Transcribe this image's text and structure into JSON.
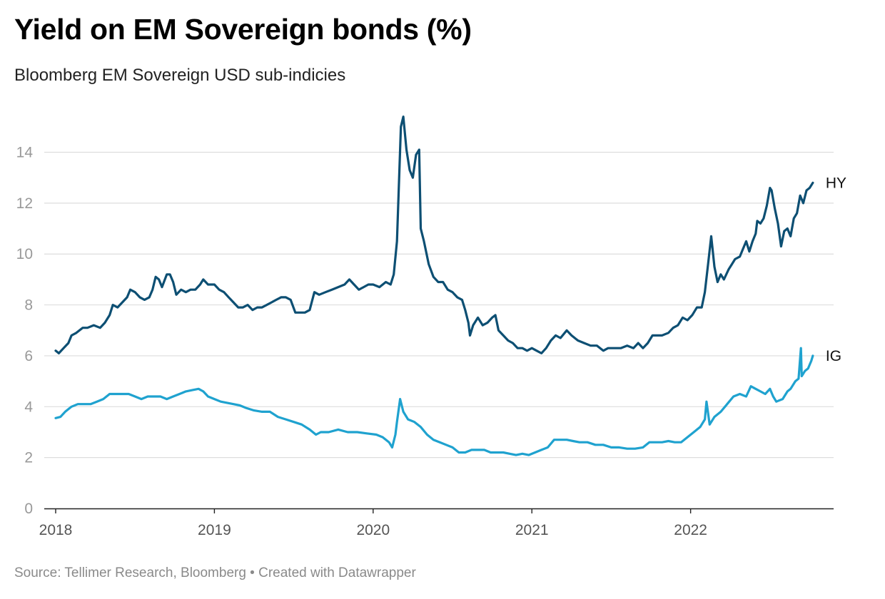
{
  "title": "Yield on EM Sovereign bonds (%)",
  "subtitle": "Bloomberg EM Sovereign USD sub-indicies",
  "source": "Source: Tellimer Research, Bloomberg • Created with Datawrapper",
  "chart_data": {
    "type": "line",
    "title": "Yield on EM Sovereign bonds (%)",
    "subtitle": "Bloomberg EM Sovereign USD sub-indicies",
    "xlabel": "",
    "ylabel": "",
    "xlim": [
      2018.0,
      2022.82
    ],
    "ylim": [
      0,
      15.5
    ],
    "y_ticks": [
      0,
      2,
      4,
      6,
      8,
      10,
      12,
      14
    ],
    "x_ticks": [
      {
        "value": 2018,
        "label": "2018"
      },
      {
        "value": 2019,
        "label": "2019"
      },
      {
        "value": 2020,
        "label": "2020"
      },
      {
        "value": 2021,
        "label": "2021"
      },
      {
        "value": 2022,
        "label": "2022"
      }
    ],
    "grid": true,
    "legend": "direct labels at line ends (right)",
    "series": [
      {
        "name": "HY",
        "color": "#0d4f73",
        "points": [
          [
            2018.0,
            6.2
          ],
          [
            2018.02,
            6.1
          ],
          [
            2018.05,
            6.3
          ],
          [
            2018.08,
            6.5
          ],
          [
            2018.1,
            6.8
          ],
          [
            2018.13,
            6.9
          ],
          [
            2018.17,
            7.1
          ],
          [
            2018.2,
            7.1
          ],
          [
            2018.24,
            7.2
          ],
          [
            2018.28,
            7.1
          ],
          [
            2018.31,
            7.3
          ],
          [
            2018.34,
            7.6
          ],
          [
            2018.36,
            8.0
          ],
          [
            2018.39,
            7.9
          ],
          [
            2018.42,
            8.1
          ],
          [
            2018.45,
            8.3
          ],
          [
            2018.47,
            8.6
          ],
          [
            2018.5,
            8.5
          ],
          [
            2018.53,
            8.3
          ],
          [
            2018.56,
            8.2
          ],
          [
            2018.59,
            8.3
          ],
          [
            2018.61,
            8.6
          ],
          [
            2018.63,
            9.1
          ],
          [
            2018.65,
            9.0
          ],
          [
            2018.67,
            8.7
          ],
          [
            2018.7,
            9.2
          ],
          [
            2018.72,
            9.2
          ],
          [
            2018.74,
            8.9
          ],
          [
            2018.76,
            8.4
          ],
          [
            2018.79,
            8.6
          ],
          [
            2018.82,
            8.5
          ],
          [
            2018.85,
            8.6
          ],
          [
            2018.88,
            8.6
          ],
          [
            2018.91,
            8.8
          ],
          [
            2018.93,
            9.0
          ],
          [
            2018.96,
            8.8
          ],
          [
            2019.0,
            8.8
          ],
          [
            2019.03,
            8.6
          ],
          [
            2019.06,
            8.5
          ],
          [
            2019.09,
            8.3
          ],
          [
            2019.12,
            8.1
          ],
          [
            2019.15,
            7.9
          ],
          [
            2019.18,
            7.9
          ],
          [
            2019.21,
            8.0
          ],
          [
            2019.24,
            7.8
          ],
          [
            2019.27,
            7.9
          ],
          [
            2019.3,
            7.9
          ],
          [
            2019.33,
            8.0
          ],
          [
            2019.36,
            8.1
          ],
          [
            2019.39,
            8.2
          ],
          [
            2019.42,
            8.3
          ],
          [
            2019.45,
            8.3
          ],
          [
            2019.48,
            8.2
          ],
          [
            2019.51,
            7.7
          ],
          [
            2019.54,
            7.7
          ],
          [
            2019.57,
            7.7
          ],
          [
            2019.6,
            7.8
          ],
          [
            2019.63,
            8.5
          ],
          [
            2019.66,
            8.4
          ],
          [
            2019.7,
            8.5
          ],
          [
            2019.74,
            8.6
          ],
          [
            2019.78,
            8.7
          ],
          [
            2019.82,
            8.8
          ],
          [
            2019.85,
            9.0
          ],
          [
            2019.88,
            8.8
          ],
          [
            2019.91,
            8.6
          ],
          [
            2019.94,
            8.7
          ],
          [
            2019.97,
            8.8
          ],
          [
            2020.0,
            8.8
          ],
          [
            2020.04,
            8.7
          ],
          [
            2020.08,
            8.9
          ],
          [
            2020.11,
            8.8
          ],
          [
            2020.13,
            9.2
          ],
          [
            2020.15,
            10.5
          ],
          [
            2020.16,
            12.3
          ],
          [
            2020.175,
            15.0
          ],
          [
            2020.19,
            15.4
          ],
          [
            2020.21,
            14.1
          ],
          [
            2020.23,
            13.3
          ],
          [
            2020.25,
            13.0
          ],
          [
            2020.27,
            13.9
          ],
          [
            2020.29,
            14.1
          ],
          [
            2020.3,
            11.0
          ],
          [
            2020.32,
            10.5
          ],
          [
            2020.35,
            9.6
          ],
          [
            2020.38,
            9.1
          ],
          [
            2020.41,
            8.9
          ],
          [
            2020.44,
            8.9
          ],
          [
            2020.47,
            8.6
          ],
          [
            2020.5,
            8.5
          ],
          [
            2020.53,
            8.3
          ],
          [
            2020.56,
            8.2
          ],
          [
            2020.58,
            7.8
          ],
          [
            2020.6,
            7.3
          ],
          [
            2020.61,
            6.8
          ],
          [
            2020.63,
            7.2
          ],
          [
            2020.66,
            7.5
          ],
          [
            2020.69,
            7.2
          ],
          [
            2020.72,
            7.3
          ],
          [
            2020.75,
            7.5
          ],
          [
            2020.77,
            7.6
          ],
          [
            2020.79,
            7.0
          ],
          [
            2020.82,
            6.8
          ],
          [
            2020.85,
            6.6
          ],
          [
            2020.88,
            6.5
          ],
          [
            2020.91,
            6.3
          ],
          [
            2020.94,
            6.3
          ],
          [
            2020.97,
            6.2
          ],
          [
            2021.0,
            6.3
          ],
          [
            2021.03,
            6.2
          ],
          [
            2021.06,
            6.1
          ],
          [
            2021.09,
            6.3
          ],
          [
            2021.12,
            6.6
          ],
          [
            2021.15,
            6.8
          ],
          [
            2021.18,
            6.7
          ],
          [
            2021.22,
            7.0
          ],
          [
            2021.25,
            6.8
          ],
          [
            2021.29,
            6.6
          ],
          [
            2021.33,
            6.5
          ],
          [
            2021.37,
            6.4
          ],
          [
            2021.41,
            6.4
          ],
          [
            2021.45,
            6.2
          ],
          [
            2021.48,
            6.3
          ],
          [
            2021.52,
            6.3
          ],
          [
            2021.56,
            6.3
          ],
          [
            2021.6,
            6.4
          ],
          [
            2021.64,
            6.3
          ],
          [
            2021.67,
            6.5
          ],
          [
            2021.7,
            6.3
          ],
          [
            2021.73,
            6.5
          ],
          [
            2021.76,
            6.8
          ],
          [
            2021.79,
            6.8
          ],
          [
            2021.82,
            6.8
          ],
          [
            2021.86,
            6.9
          ],
          [
            2021.89,
            7.1
          ],
          [
            2021.92,
            7.2
          ],
          [
            2021.95,
            7.5
          ],
          [
            2021.98,
            7.4
          ],
          [
            2022.01,
            7.6
          ],
          [
            2022.04,
            7.9
          ],
          [
            2022.07,
            7.9
          ],
          [
            2022.09,
            8.5
          ],
          [
            2022.11,
            9.6
          ],
          [
            2022.13,
            10.7
          ],
          [
            2022.15,
            9.5
          ],
          [
            2022.17,
            8.9
          ],
          [
            2022.19,
            9.2
          ],
          [
            2022.21,
            9.0
          ],
          [
            2022.24,
            9.4
          ],
          [
            2022.26,
            9.6
          ],
          [
            2022.28,
            9.8
          ],
          [
            2022.31,
            9.9
          ],
          [
            2022.33,
            10.2
          ],
          [
            2022.35,
            10.5
          ],
          [
            2022.37,
            10.1
          ],
          [
            2022.39,
            10.5
          ],
          [
            2022.41,
            10.8
          ],
          [
            2022.42,
            11.3
          ],
          [
            2022.44,
            11.2
          ],
          [
            2022.46,
            11.4
          ],
          [
            2022.48,
            11.9
          ],
          [
            2022.5,
            12.6
          ],
          [
            2022.51,
            12.5
          ],
          [
            2022.53,
            11.8
          ],
          [
            2022.55,
            11.2
          ],
          [
            2022.57,
            10.3
          ],
          [
            2022.59,
            10.9
          ],
          [
            2022.61,
            11.0
          ],
          [
            2022.63,
            10.7
          ],
          [
            2022.65,
            11.4
          ],
          [
            2022.67,
            11.6
          ],
          [
            2022.69,
            12.3
          ],
          [
            2022.71,
            12.0
          ],
          [
            2022.73,
            12.5
          ],
          [
            2022.75,
            12.6
          ],
          [
            2022.77,
            12.8
          ]
        ]
      },
      {
        "name": "IG",
        "color": "#1fa2cf",
        "points": [
          [
            2018.0,
            3.55
          ],
          [
            2018.03,
            3.6
          ],
          [
            2018.06,
            3.8
          ],
          [
            2018.1,
            4.0
          ],
          [
            2018.14,
            4.1
          ],
          [
            2018.18,
            4.1
          ],
          [
            2018.22,
            4.1
          ],
          [
            2018.26,
            4.2
          ],
          [
            2018.3,
            4.3
          ],
          [
            2018.34,
            4.5
          ],
          [
            2018.38,
            4.5
          ],
          [
            2018.42,
            4.5
          ],
          [
            2018.46,
            4.5
          ],
          [
            2018.5,
            4.4
          ],
          [
            2018.54,
            4.3
          ],
          [
            2018.58,
            4.4
          ],
          [
            2018.62,
            4.4
          ],
          [
            2018.66,
            4.4
          ],
          [
            2018.7,
            4.3
          ],
          [
            2018.74,
            4.4
          ],
          [
            2018.78,
            4.5
          ],
          [
            2018.82,
            4.6
          ],
          [
            2018.86,
            4.65
          ],
          [
            2018.9,
            4.7
          ],
          [
            2018.93,
            4.6
          ],
          [
            2018.96,
            4.4
          ],
          [
            2019.0,
            4.3
          ],
          [
            2019.04,
            4.2
          ],
          [
            2019.08,
            4.15
          ],
          [
            2019.12,
            4.1
          ],
          [
            2019.16,
            4.05
          ],
          [
            2019.2,
            3.95
          ],
          [
            2019.25,
            3.85
          ],
          [
            2019.3,
            3.8
          ],
          [
            2019.35,
            3.8
          ],
          [
            2019.4,
            3.6
          ],
          [
            2019.45,
            3.5
          ],
          [
            2019.5,
            3.4
          ],
          [
            2019.55,
            3.3
          ],
          [
            2019.6,
            3.1
          ],
          [
            2019.64,
            2.9
          ],
          [
            2019.67,
            3.0
          ],
          [
            2019.72,
            3.0
          ],
          [
            2019.78,
            3.1
          ],
          [
            2019.84,
            3.0
          ],
          [
            2019.9,
            3.0
          ],
          [
            2019.96,
            2.95
          ],
          [
            2020.02,
            2.9
          ],
          [
            2020.06,
            2.8
          ],
          [
            2020.1,
            2.6
          ],
          [
            2020.12,
            2.4
          ],
          [
            2020.14,
            2.9
          ],
          [
            2020.15,
            3.4
          ],
          [
            2020.17,
            4.3
          ],
          [
            2020.19,
            3.8
          ],
          [
            2020.22,
            3.5
          ],
          [
            2020.26,
            3.4
          ],
          [
            2020.3,
            3.2
          ],
          [
            2020.34,
            2.9
          ],
          [
            2020.38,
            2.7
          ],
          [
            2020.42,
            2.6
          ],
          [
            2020.46,
            2.5
          ],
          [
            2020.5,
            2.4
          ],
          [
            2020.54,
            2.2
          ],
          [
            2020.58,
            2.2
          ],
          [
            2020.62,
            2.3
          ],
          [
            2020.66,
            2.3
          ],
          [
            2020.7,
            2.3
          ],
          [
            2020.74,
            2.2
          ],
          [
            2020.78,
            2.2
          ],
          [
            2020.82,
            2.2
          ],
          [
            2020.86,
            2.15
          ],
          [
            2020.9,
            2.1
          ],
          [
            2020.94,
            2.15
          ],
          [
            2020.98,
            2.1
          ],
          [
            2021.02,
            2.2
          ],
          [
            2021.06,
            2.3
          ],
          [
            2021.1,
            2.4
          ],
          [
            2021.14,
            2.7
          ],
          [
            2021.18,
            2.7
          ],
          [
            2021.22,
            2.7
          ],
          [
            2021.26,
            2.65
          ],
          [
            2021.3,
            2.6
          ],
          [
            2021.35,
            2.6
          ],
          [
            2021.4,
            2.5
          ],
          [
            2021.45,
            2.5
          ],
          [
            2021.5,
            2.4
          ],
          [
            2021.55,
            2.4
          ],
          [
            2021.6,
            2.35
          ],
          [
            2021.65,
            2.35
          ],
          [
            2021.7,
            2.4
          ],
          [
            2021.74,
            2.6
          ],
          [
            2021.78,
            2.6
          ],
          [
            2021.82,
            2.6
          ],
          [
            2021.86,
            2.65
          ],
          [
            2021.9,
            2.6
          ],
          [
            2021.94,
            2.6
          ],
          [
            2021.98,
            2.8
          ],
          [
            2022.02,
            3.0
          ],
          [
            2022.06,
            3.2
          ],
          [
            2022.09,
            3.5
          ],
          [
            2022.1,
            4.2
          ],
          [
            2022.12,
            3.3
          ],
          [
            2022.15,
            3.6
          ],
          [
            2022.19,
            3.8
          ],
          [
            2022.23,
            4.1
          ],
          [
            2022.27,
            4.4
          ],
          [
            2022.31,
            4.5
          ],
          [
            2022.35,
            4.4
          ],
          [
            2022.38,
            4.8
          ],
          [
            2022.41,
            4.7
          ],
          [
            2022.44,
            4.6
          ],
          [
            2022.47,
            4.5
          ],
          [
            2022.5,
            4.7
          ],
          [
            2022.52,
            4.4
          ],
          [
            2022.54,
            4.2
          ],
          [
            2022.58,
            4.3
          ],
          [
            2022.61,
            4.6
          ],
          [
            2022.63,
            4.7
          ],
          [
            2022.66,
            5.0
          ],
          [
            2022.68,
            5.1
          ],
          [
            2022.695,
            6.3
          ],
          [
            2022.7,
            5.2
          ],
          [
            2022.72,
            5.4
          ],
          [
            2022.74,
            5.5
          ],
          [
            2022.76,
            5.8
          ],
          [
            2022.77,
            6.0
          ]
        ]
      }
    ]
  }
}
